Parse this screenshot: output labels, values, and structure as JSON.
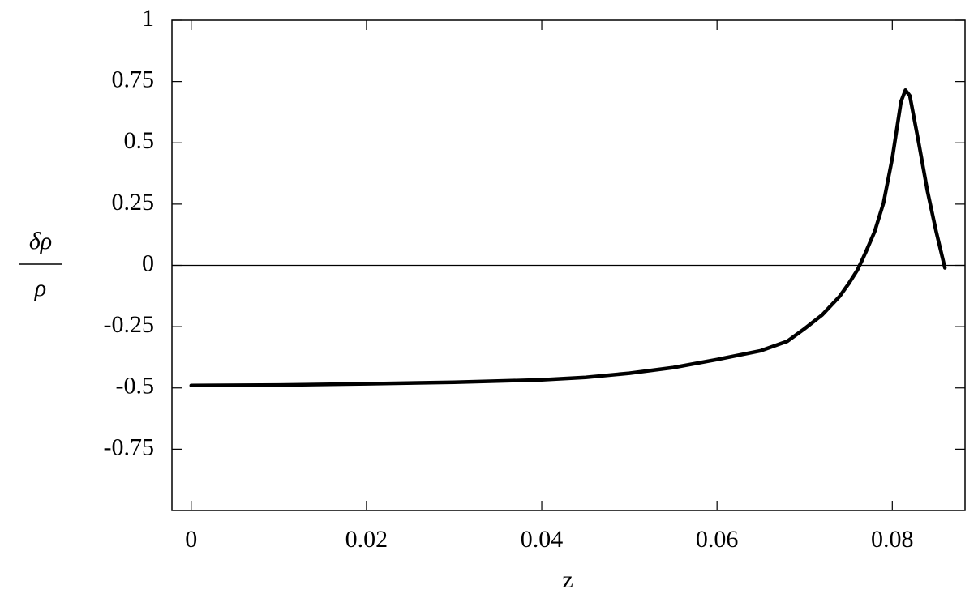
{
  "chart_data": {
    "type": "line",
    "xlabel": "z",
    "ylabel": {
      "numerator": "δρ",
      "denominator": "ρ"
    },
    "x": [
      0,
      0.01,
      0.02,
      0.03,
      0.04,
      0.045,
      0.05,
      0.055,
      0.06,
      0.065,
      0.068,
      0.07,
      0.072,
      0.074,
      0.075,
      0.076,
      0.0765,
      0.077,
      0.078,
      0.079,
      0.08,
      0.081,
      0.0815,
      0.082,
      0.083,
      0.084,
      0.085,
      0.086
    ],
    "series": [
      {
        "color": "#000000",
        "values": [
          -0.49,
          -0.488,
          -0.483,
          -0.477,
          -0.467,
          -0.457,
          -0.44,
          -0.417,
          -0.384,
          -0.348,
          -0.31,
          -0.258,
          -0.202,
          -0.126,
          -0.076,
          -0.02,
          0.017,
          0.056,
          0.139,
          0.255,
          0.437,
          0.669,
          0.715,
          0.692,
          0.503,
          0.305,
          0.139,
          -0.01
        ]
      }
    ],
    "xlim": [
      -0.0022,
      0.0883
    ],
    "ylim": [
      -1,
      1
    ],
    "xticks": [
      0,
      0.02,
      0.04,
      0.06,
      0.08
    ],
    "yticks": [
      1,
      0.75,
      0.5,
      0.25,
      0,
      -0.25,
      -0.5,
      -0.75
    ],
    "zero_line": true
  }
}
